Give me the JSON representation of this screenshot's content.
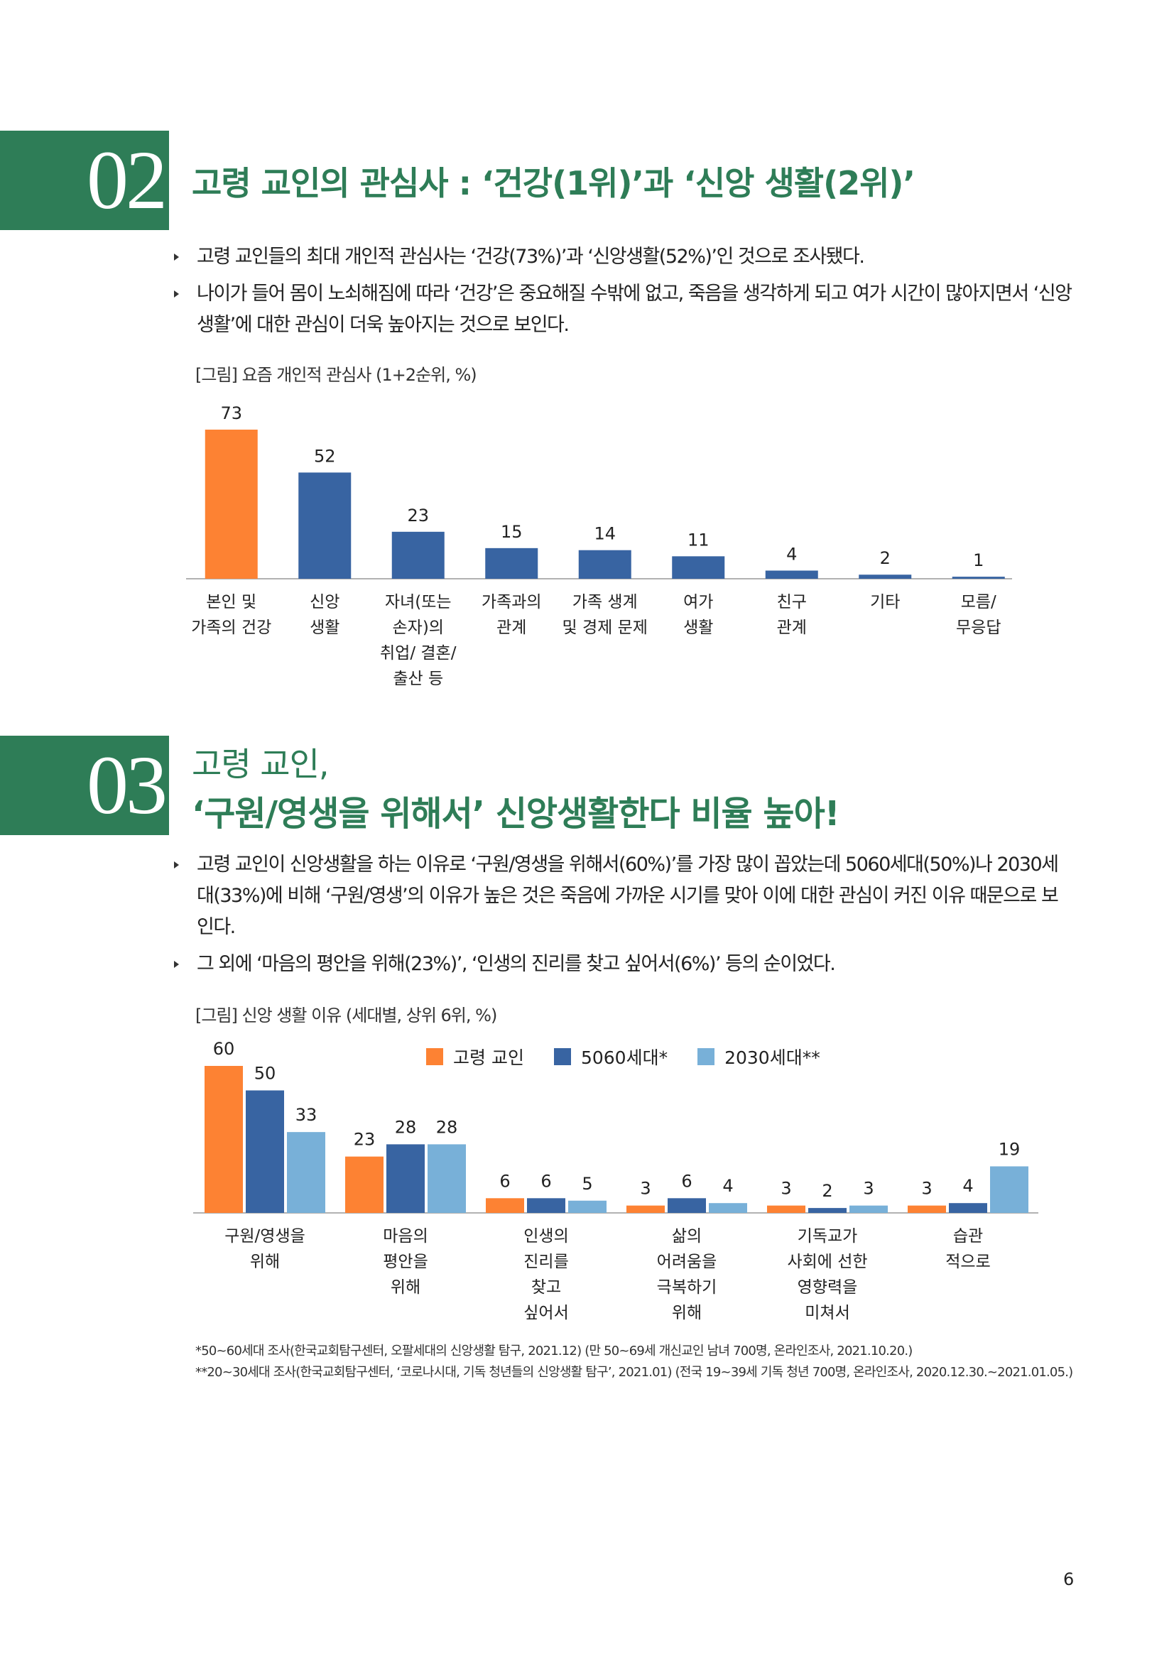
{
  "sections": [
    {
      "number": "02",
      "title": "고령 교인의 관심사 : ‘건강(1위)’과 ‘신앙 생활(2위)’",
      "bullets": [
        "고령 교인들의 최대 개인적 관심사는 ‘건강(73%)’과 ‘신앙생활(52%)’인 것으로 조사됐다.",
        "나이가 들어 몸이 노쇠해짐에 따라 ‘건강’은 중요해질 수밖에 없고, 죽음을 생각하게 되고 여가 시간이 많아지면서 ‘신앙생활’에 대한 관심이 더욱 높아지는 것으로 보인다."
      ],
      "figure_caption": "[그림] 요즘 개인적 관심사 (1+2순위, %)"
    },
    {
      "number": "03",
      "title_line1": "고령 교인,",
      "title_line2": "‘구원/영생을 위해서’ 신앙생활한다 비율 높아!",
      "bullets": [
        "고령 교인이 신앙생활을 하는 이유로 ‘구원/영생을 위해서(60%)’를 가장 많이 꼽았는데 5060세대(50%)나 2030세대(33%)에 비해 ‘구원/영생’의 이유가 높은 것은 죽음에 가까운 시기를 맞아 이에 대한 관심이 커진 이유 때문으로 보인다.",
        "그 외에 ‘마음의 평안을 위해(23%)’, ‘인생의 진리를 찾고 싶어서(6%)’ 등의 순이었다."
      ],
      "figure_caption": "[그림] 신앙 생활 이유 (세대별, 상위 6위, %)"
    }
  ],
  "chart_data": [
    {
      "type": "bar",
      "categories": [
        [
          "본인 및",
          "가족의 건강"
        ],
        [
          "신앙",
          "생활"
        ],
        [
          "자녀(또는",
          "손자)의",
          "취업/ 결혼/",
          "출산 등"
        ],
        [
          "가족과의",
          "관계"
        ],
        [
          "가족 생계",
          "및 경제 문제"
        ],
        [
          "여가",
          "생활"
        ],
        [
          "친구",
          "관계"
        ],
        [
          "기타"
        ],
        [
          "모름/",
          "무응답"
        ]
      ],
      "values": [
        73,
        52,
        23,
        15,
        14,
        11,
        4,
        2,
        1
      ],
      "colors": [
        "#fd8233",
        "#3864a2",
        "#3864a2",
        "#3864a2",
        "#3864a2",
        "#3864a2",
        "#3864a2",
        "#3864a2",
        "#3864a2"
      ],
      "ylim": [
        0,
        80
      ],
      "title": "",
      "xlabel": "",
      "ylabel": ""
    },
    {
      "type": "bar",
      "categories": [
        [
          "구원/영생을",
          "위해"
        ],
        [
          "마음의",
          "평안을",
          "위해"
        ],
        [
          "인생의",
          "진리를",
          "찾고",
          "싶어서"
        ],
        [
          "삶의",
          "어려움을",
          "극복하기",
          "위해"
        ],
        [
          "기독교가",
          "사회에 선한",
          "영향력을",
          "미쳐서"
        ],
        [
          "습관",
          "적으로"
        ]
      ],
      "series": [
        {
          "name": "고령 교인",
          "color": "#fd8233",
          "values": [
            60,
            23,
            6,
            3,
            3,
            3
          ]
        },
        {
          "name": "5060세대*",
          "color": "#3864a2",
          "values": [
            50,
            28,
            6,
            6,
            2,
            4
          ]
        },
        {
          "name": "2030세대**",
          "color": "#78b0d8",
          "values": [
            33,
            28,
            5,
            4,
            3,
            19
          ]
        }
      ],
      "ylim": [
        0,
        65
      ],
      "legend_position": "top-center",
      "title": "",
      "xlabel": "",
      "ylabel": ""
    }
  ],
  "footnotes": [
    "*50~60세대 조사(한국교회탐구센터, 오팔세대의 신앙생활 탐구, 2021.12) (만 50~69세 개신교인 남녀 700명, 온라인조사, 2021.10.20.)",
    "**20~30세대 조사(한국교회탐구센터, ‘코로나시대, 기독 청년들의 신앙생활 탐구’, 2021.01) (전국 19~39세 기독 청년 700명, 온라인조사, 2020.12.30.~2021.01.05.)"
  ],
  "page_number": "6"
}
